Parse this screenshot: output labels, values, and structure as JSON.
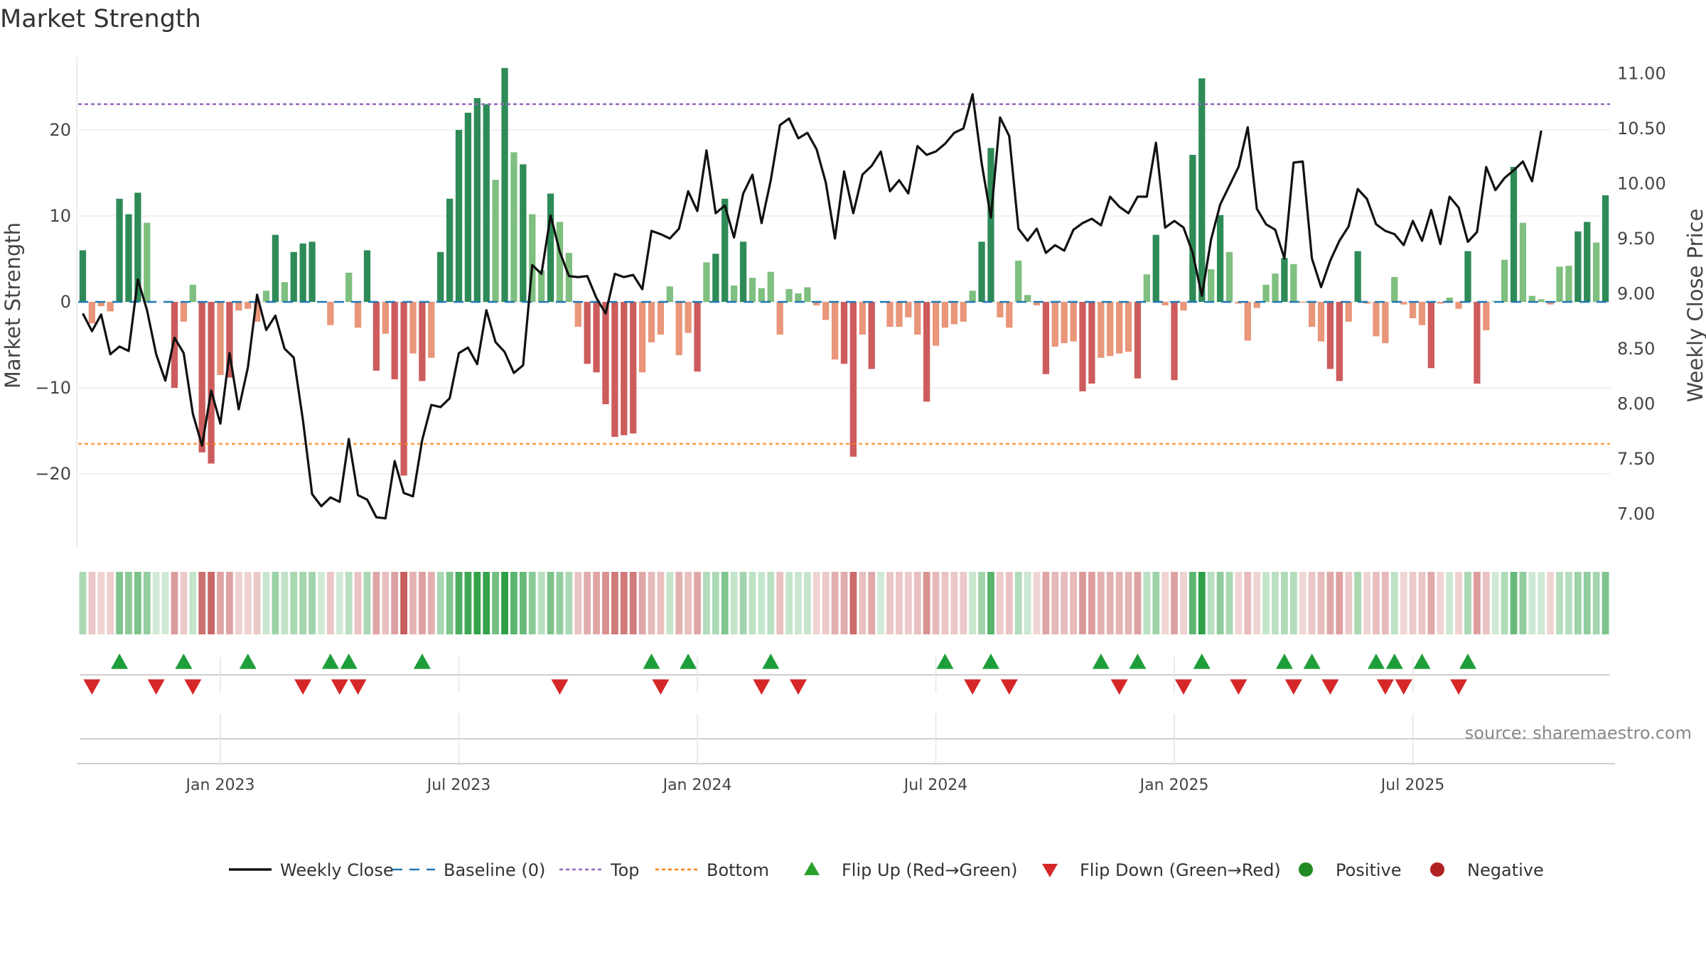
{
  "chart_data": {
    "type": "bar+line",
    "title": "Market Strength",
    "ylabel_left": "Market Strength",
    "ylabel_right": "Weekly Close Price",
    "y_left_ticks": [
      20,
      10,
      0,
      -10,
      -20
    ],
    "y_left_tick_labels": [
      "20",
      "10",
      "0",
      "−10",
      "−20"
    ],
    "y_left_range": [
      -28.5,
      28.5
    ],
    "y_right_ticks": [
      "11.00",
      "10.50",
      "10.00",
      "9.50",
      "9.00",
      "8.50",
      "8.00",
      "7.50",
      "7.00"
    ],
    "y_right_range": [
      6.7,
      11.15
    ],
    "x_tick_labels": [
      "Jan 2023",
      "Jul 2023",
      "Jan 2024",
      "Jul 2024",
      "Jan 2025",
      "Jul 2025"
    ],
    "x_tick_week_index": [
      15,
      41,
      67,
      93,
      119,
      145
    ],
    "top_line": 23,
    "bottom_line": -16.5,
    "strength_values": [
      6,
      -2.5,
      -0.5,
      -1.1,
      12,
      10.2,
      12.7,
      9.2,
      0,
      0,
      -10,
      -2.3,
      2,
      -17.5,
      -18.8,
      -8.5,
      -8.8,
      -1,
      -0.8,
      -2.3,
      1.3,
      7.8,
      2.3,
      5.8,
      6.8,
      7,
      0,
      -2.7,
      0,
      3.4,
      -3,
      6,
      -8,
      -3.7,
      -9,
      -20.2,
      -6,
      -9.2,
      -6.5,
      5.8,
      12,
      20,
      22,
      23.7,
      23,
      14.2,
      27.2,
      17.4,
      16,
      10.2,
      3.7,
      12.6,
      9.3,
      5.7,
      -2.9,
      -7.2,
      -8.2,
      -11.9,
      -15.7,
      -15.5,
      -15.3,
      -8.2,
      -4.7,
      -3.8,
      1.8,
      -6.2,
      -3.6,
      -8.1,
      4.6,
      5.6,
      12,
      1.9,
      7,
      2.8,
      1.6,
      3.5,
      -3.8,
      1.5,
      1,
      1.7,
      -0.4,
      -2.1,
      -6.7,
      -7.2,
      -18,
      -3.8,
      -7.8,
      0,
      -2.9,
      -2.9,
      -1.8,
      -3.8,
      -11.6,
      -5.1,
      -3,
      -2.6,
      -2.3,
      1.3,
      7,
      17.9,
      -1.8,
      -3,
      4.8,
      0.8,
      -0.4,
      -8.4,
      -5.2,
      -4.8,
      -4.6,
      -10.4,
      -9.5,
      -6.5,
      -6.3,
      -6,
      -5.8,
      -8.9,
      3.2,
      7.8,
      -0.4,
      -9.1,
      -1,
      17.1,
      26,
      3.8,
      10.1,
      5.8,
      -0.2,
      -4.5,
      -0.7,
      2,
      3.3,
      5.1,
      4.4,
      -0.1,
      -2.9,
      -4.6,
      -7.8,
      -9.2,
      -2.3,
      5.9,
      -0.2,
      -4,
      -4.8,
      2.9,
      -0.3,
      -1.9,
      -2.7,
      -7.7,
      -0.2,
      0.5,
      -0.8,
      5.9,
      -9.5,
      -3.3,
      0.1,
      4.9,
      15.7,
      9.2,
      0.7,
      0.3,
      -0.3,
      4.1,
      4.2,
      8.2,
      9.3,
      6.9,
      12.4
    ],
    "close_values": [
      8.82,
      8.66,
      8.81,
      8.45,
      8.52,
      8.48,
      9.13,
      8.85,
      8.45,
      8.21,
      8.6,
      8.46,
      7.91,
      7.62,
      8.12,
      7.82,
      8.46,
      7.95,
      8.33,
      8.99,
      8.67,
      8.8,
      8.5,
      8.42,
      7.85,
      7.18,
      7.07,
      7.15,
      7.11,
      7.68,
      7.17,
      7.13,
      6.97,
      6.96,
      7.48,
      7.19,
      7.16,
      7.67,
      7.99,
      7.97,
      8.05,
      8.46,
      8.51,
      8.36,
      8.85,
      8.56,
      8.47,
      8.28,
      8.35,
      9.26,
      9.18,
      9.71,
      9.38,
      9.16,
      9.15,
      9.16,
      8.96,
      8.82,
      9.18,
      9.15,
      9.17,
      9.04,
      9.57,
      9.54,
      9.5,
      9.59,
      9.93,
      9.75,
      10.3,
      9.73,
      9.8,
      9.51,
      9.91,
      10.08,
      9.64,
      10.03,
      10.53,
      10.59,
      10.41,
      10.46,
      10.31,
      10.01,
      9.5,
      10.11,
      9.73,
      10.08,
      10.16,
      10.29,
      9.93,
      10.03,
      9.91,
      10.34,
      10.26,
      10.29,
      10.36,
      10.46,
      10.5,
      10.81,
      10.18,
      9.69,
      10.6,
      10.43,
      9.59,
      9.48,
      9.59,
      9.37,
      9.44,
      9.39,
      9.58,
      9.64,
      9.68,
      9.62,
      9.88,
      9.79,
      9.73,
      9.88,
      9.88,
      10.37,
      9.6,
      9.66,
      9.6,
      9.37,
      8.98,
      9.49,
      9.81,
      9.98,
      10.15,
      10.51,
      9.77,
      9.63,
      9.58,
      9.32,
      10.19,
      10.2,
      9.32,
      9.06,
      9.3,
      9.48,
      9.61,
      9.95,
      9.86,
      9.63,
      9.57,
      9.54,
      9.44,
      9.66,
      9.48,
      9.76,
      9.45,
      9.88,
      9.78,
      9.47,
      9.56,
      10.15,
      9.94,
      10.05,
      10.12,
      10.2,
      10.02,
      10.48
    ],
    "heat_strip_label": "",
    "flip_up_week_index": [
      4,
      11,
      18,
      27,
      29,
      37,
      62,
      66,
      75,
      94,
      99,
      111,
      115,
      122,
      131,
      134,
      141,
      143,
      146,
      151
    ],
    "flip_down_week_index": [
      1,
      8,
      12,
      24,
      28,
      30,
      52,
      63,
      74,
      78,
      97,
      101,
      113,
      120,
      126,
      132,
      136,
      142,
      144,
      150
    ],
    "legend": [
      {
        "label": "Weekly Close",
        "kind": "line",
        "color": "#111111"
      },
      {
        "label": "Baseline (0)",
        "kind": "dash",
        "color": "#1f77b4"
      },
      {
        "label": "Top",
        "kind": "dot",
        "color": "#9467bd"
      },
      {
        "label": "Bottom",
        "kind": "dot",
        "color": "#ff7f0e"
      },
      {
        "label": "Flip Up (Red→Green)",
        "kind": "tri-up",
        "color": "#2ca02c"
      },
      {
        "label": "Flip Down (Green→Red)",
        "kind": "tri-down",
        "color": "#d62728"
      },
      {
        "label": "Positive",
        "kind": "circle",
        "color": "#228b22"
      },
      {
        "label": "Negative",
        "kind": "circle",
        "color": "#b22222"
      }
    ],
    "legend_position": "bottom-center",
    "source": "source: sharemaestro.com",
    "colors": {
      "strong_pos": "#2e8b57",
      "weak_pos": "#7fbf7f",
      "strong_neg": "#cd5c5c",
      "weak_neg": "#e9967a"
    }
  }
}
